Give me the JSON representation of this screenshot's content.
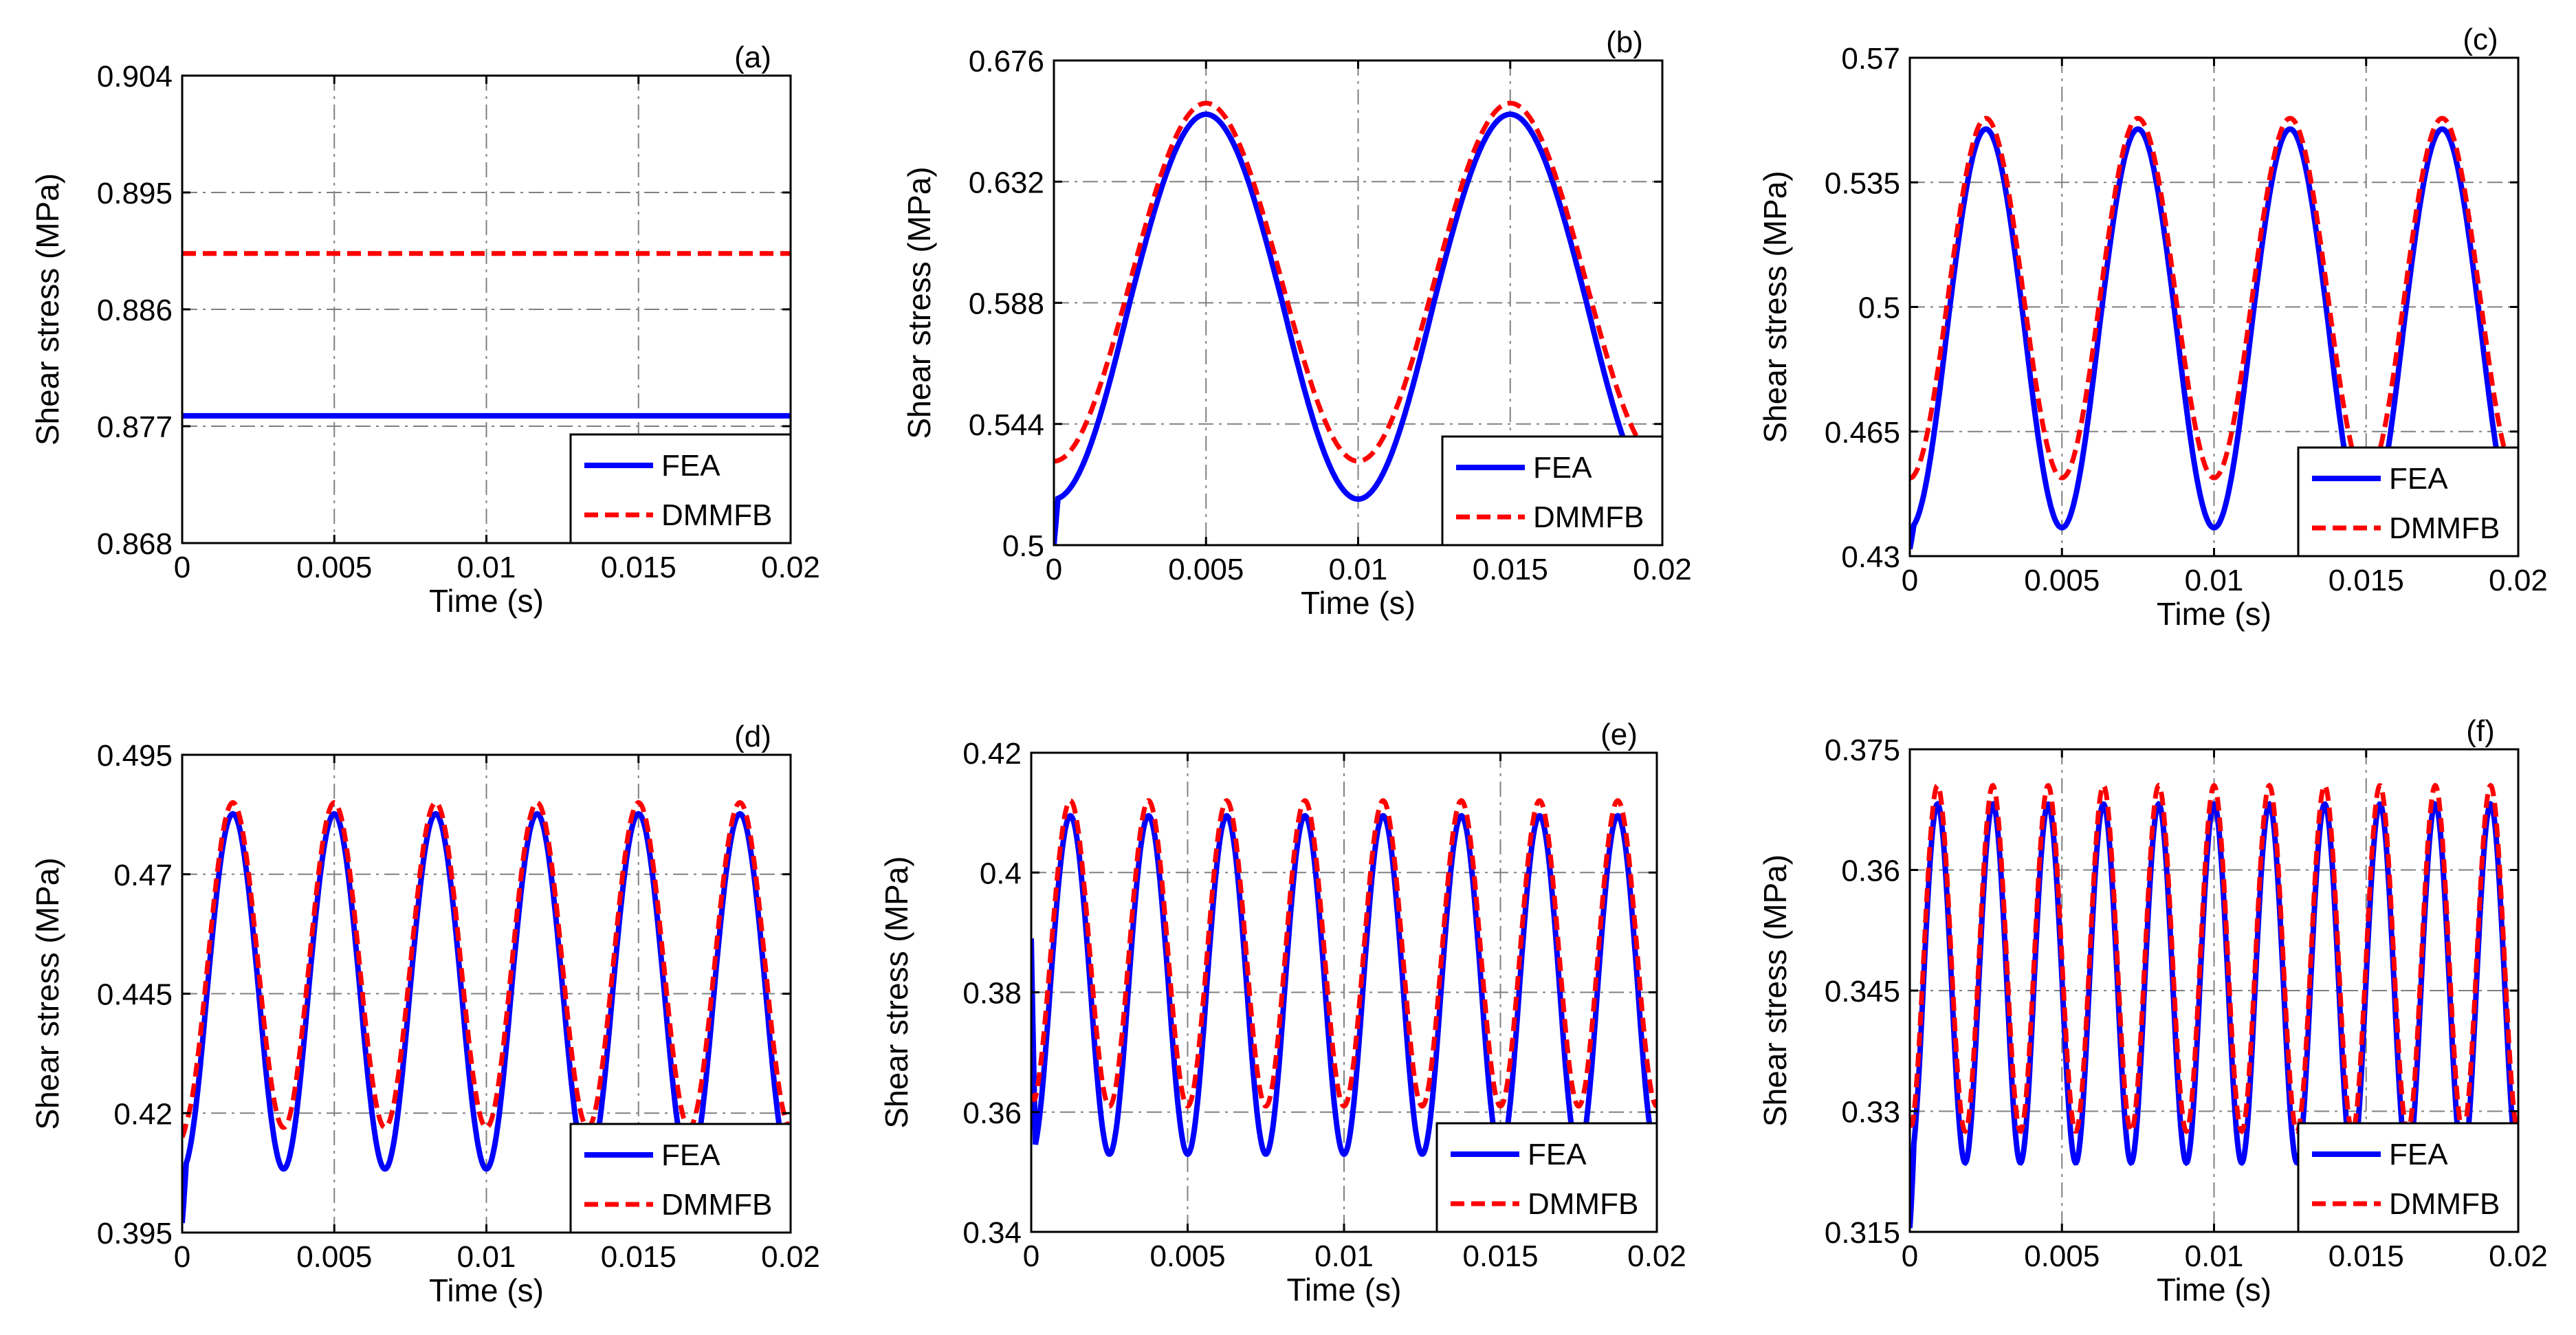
{
  "figure": {
    "legend_labels": [
      "FEA",
      "DMMFB"
    ],
    "colors": {
      "fea": "#0000ff",
      "dmmfb": "#ff0000",
      "grid": "#808080",
      "axis": "#000000"
    }
  },
  "chart_data": [
    {
      "type": "line",
      "panel": "(a)",
      "xlabel": "Time (s)",
      "ylabel": "Shear stress (MPa)",
      "xlim": [
        0,
        0.02
      ],
      "ylim": [
        0.868,
        0.904
      ],
      "xticks": [
        0,
        0.005,
        0.01,
        0.015,
        0.02
      ],
      "xtick_labels": [
        "0",
        "0.005",
        "0.01",
        "0.015",
        "0.02"
      ],
      "yticks": [
        0.868,
        0.877,
        0.886,
        0.895,
        0.904
      ],
      "ytick_labels": [
        "0.868",
        "0.877",
        "0.886",
        "0.895",
        "0.904"
      ],
      "legend_position": "bottom-right",
      "series": [
        {
          "name": "FEA",
          "style": "solid",
          "mean": 0.8778,
          "amplitude": 0,
          "skew": 0,
          "cycles": 0,
          "start": 0.8778
        },
        {
          "name": "DMMFB",
          "style": "dashed",
          "mean": 0.8903,
          "amplitude": 0,
          "skew": 0,
          "cycles": 0,
          "start": 0.8903
        }
      ]
    },
    {
      "type": "line",
      "panel": "(b)",
      "xlabel": "Time (s)",
      "ylabel": "Shear stress (MPa)",
      "xlim": [
        0,
        0.02
      ],
      "ylim": [
        0.5,
        0.676
      ],
      "xticks": [
        0,
        0.005,
        0.01,
        0.015,
        0.02
      ],
      "xtick_labels": [
        "0",
        "0.005",
        "0.01",
        "0.015",
        "0.02"
      ],
      "yticks": [
        0.5,
        0.544,
        0.588,
        0.632,
        0.676
      ],
      "ytick_labels": [
        "0.5",
        "0.544",
        "0.588",
        "0.632",
        "0.676"
      ],
      "legend_position": "bottom-right",
      "series": [
        {
          "name": "FEA",
          "style": "solid",
          "mean": 0.5885,
          "amplitude": 0.0705,
          "skew": 0.12,
          "cycles": 2,
          "start": 0.5
        },
        {
          "name": "DMMFB",
          "style": "dashed",
          "mean": 0.5955,
          "amplitude": 0.065,
          "skew": 0,
          "cycles": 2,
          "start": 0.5305
        }
      ]
    },
    {
      "type": "line",
      "panel": "(c)",
      "xlabel": "Time (s)",
      "ylabel": "Shear stress (MPa)",
      "xlim": [
        0,
        0.02
      ],
      "ylim": [
        0.43,
        0.57
      ],
      "xticks": [
        0,
        0.005,
        0.01,
        0.015,
        0.02
      ],
      "xtick_labels": [
        "0",
        "0.005",
        "0.01",
        "0.015",
        "0.02"
      ],
      "yticks": [
        0.43,
        0.465,
        0.5,
        0.535,
        0.57
      ],
      "ytick_labels": [
        "0.43",
        "0.465",
        "0.5",
        "0.535",
        "0.57"
      ],
      "legend_position": "bottom-right",
      "series": [
        {
          "name": "FEA",
          "style": "solid",
          "mean": 0.4955,
          "amplitude": 0.0565,
          "skew": 0.12,
          "cycles": 4,
          "start": 0.432
        },
        {
          "name": "DMMFB",
          "style": "dashed",
          "mean": 0.5025,
          "amplitude": 0.0505,
          "skew": 0,
          "cycles": 4,
          "start": 0.452
        }
      ]
    },
    {
      "type": "line",
      "panel": "(d)",
      "xlabel": "Time (s)",
      "ylabel": "Shear stress (MPa)",
      "xlim": [
        0,
        0.02
      ],
      "ylim": [
        0.395,
        0.495
      ],
      "xticks": [
        0,
        0.005,
        0.01,
        0.015,
        0.02
      ],
      "xtick_labels": [
        "0",
        "0.005",
        "0.01",
        "0.015",
        "0.02"
      ],
      "yticks": [
        0.395,
        0.42,
        0.445,
        0.47,
        0.495
      ],
      "ytick_labels": [
        "0.395",
        "0.42",
        "0.445",
        "0.47",
        "0.495"
      ],
      "legend_position": "bottom-right",
      "series": [
        {
          "name": "FEA",
          "style": "solid",
          "mean": 0.4465,
          "amplitude": 0.0375,
          "skew": 0.12,
          "cycles": 6,
          "start": 0.397
        },
        {
          "name": "DMMFB",
          "style": "dashed",
          "mean": 0.451,
          "amplitude": 0.034,
          "skew": 0,
          "cycles": 6,
          "start": 0.415
        }
      ]
    },
    {
      "type": "line",
      "panel": "(e)",
      "xlabel": "Time (s)",
      "ylabel": "Shear stress (MPa)",
      "xlim": [
        0,
        0.02
      ],
      "ylim": [
        0.34,
        0.42
      ],
      "xticks": [
        0,
        0.005,
        0.01,
        0.015,
        0.02
      ],
      "xtick_labels": [
        "0",
        "0.005",
        "0.01",
        "0.015",
        "0.02"
      ],
      "yticks": [
        0.34,
        0.36,
        0.38,
        0.4,
        0.42
      ],
      "ytick_labels": [
        "0.34",
        "0.36",
        "0.38",
        "0.4",
        "0.42"
      ],
      "legend_position": "bottom-right",
      "series": [
        {
          "name": "FEA",
          "style": "solid",
          "mean": 0.382,
          "amplitude": 0.0285,
          "skew": 0.12,
          "cycles": 8,
          "start": 0.389
        },
        {
          "name": "DMMFB",
          "style": "dashed",
          "mean": 0.3865,
          "amplitude": 0.0255,
          "skew": 0,
          "cycles": 8,
          "start": 0.363
        }
      ]
    },
    {
      "type": "line",
      "panel": "(f)",
      "xlabel": "Time (s)",
      "ylabel": "Shear stress (MPa)",
      "xlim": [
        0,
        0.02
      ],
      "ylim": [
        0.315,
        0.375
      ],
      "xticks": [
        0,
        0.005,
        0.01,
        0.015,
        0.02
      ],
      "xtick_labels": [
        "0",
        "0.005",
        "0.01",
        "0.015",
        "0.02"
      ],
      "yticks": [
        0.315,
        0.33,
        0.345,
        0.36,
        0.375
      ],
      "ytick_labels": [
        "0.315",
        "0.33",
        "0.345",
        "0.36",
        "0.375"
      ],
      "legend_position": "bottom-right",
      "series": [
        {
          "name": "FEA",
          "style": "solid",
          "mean": 0.3465,
          "amplitude": 0.0225,
          "skew": 0.12,
          "cycles": 11,
          "start": 0.3155
        },
        {
          "name": "DMMFB",
          "style": "dashed",
          "mean": 0.349,
          "amplitude": 0.0215,
          "skew": 0,
          "cycles": 11,
          "start": 0.3285
        }
      ]
    }
  ]
}
